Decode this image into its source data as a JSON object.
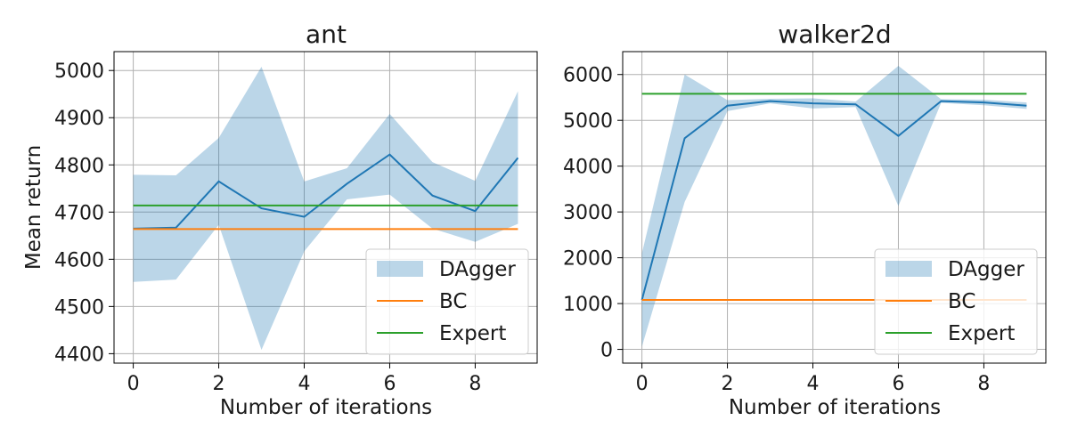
{
  "chart_data": [
    {
      "type": "line",
      "title": "ant",
      "xlabel": "Number of iterations",
      "ylabel": "Mean return",
      "xlim": [
        -0.45,
        9.45
      ],
      "ylim": [
        4380,
        5040
      ],
      "x_ticks": [
        0,
        2,
        4,
        6,
        8
      ],
      "y_ticks": [
        4400,
        4500,
        4600,
        4700,
        4800,
        4900,
        5000
      ],
      "grid": true,
      "legend_position": "lower-right",
      "x": [
        0,
        1,
        2,
        3,
        4,
        5,
        6,
        7,
        8,
        9
      ],
      "series": [
        {
          "name": "DAgger",
          "kind": "band",
          "color": "#1f77b4",
          "values": [
            4665,
            4667,
            4765,
            4708,
            4690,
            4760,
            4822,
            4735,
            4702,
            4815
          ],
          "lower": [
            4552,
            4557,
            4673,
            4408,
            4617,
            4727,
            4737,
            4665,
            4637,
            4675
          ],
          "upper": [
            4779,
            4778,
            4857,
            5008,
            4765,
            4793,
            4908,
            4806,
            4766,
            4956
          ]
        },
        {
          "name": "BC",
          "kind": "line",
          "color": "#ff7f0e",
          "values": [
            4664,
            4664,
            4664,
            4664,
            4664,
            4664,
            4664,
            4664,
            4664,
            4664
          ]
        },
        {
          "name": "Expert",
          "kind": "line",
          "color": "#2ca02c",
          "values": [
            4714,
            4714,
            4714,
            4714,
            4714,
            4714,
            4714,
            4714,
            4714,
            4714
          ]
        }
      ]
    },
    {
      "type": "line",
      "title": "walker2d",
      "xlabel": "Number of iterations",
      "ylabel": "",
      "xlim": [
        -0.45,
        9.45
      ],
      "ylim": [
        -300,
        6500
      ],
      "x_ticks": [
        0,
        2,
        4,
        6,
        8
      ],
      "y_ticks": [
        0,
        1000,
        2000,
        3000,
        4000,
        5000,
        6000
      ],
      "grid": true,
      "legend_position": "lower-right",
      "x": [
        0,
        1,
        2,
        3,
        4,
        5,
        6,
        7,
        8,
        9
      ],
      "series": [
        {
          "name": "DAgger",
          "kind": "band",
          "color": "#1f77b4",
          "values": [
            1080,
            4610,
            5320,
            5420,
            5370,
            5350,
            4660,
            5420,
            5390,
            5320
          ],
          "lower": [
            60,
            3220,
            5200,
            5370,
            5260,
            5290,
            3130,
            5380,
            5330,
            5250
          ],
          "upper": [
            2100,
            6000,
            5440,
            5470,
            5480,
            5410,
            6190,
            5460,
            5450,
            5390
          ]
        },
        {
          "name": "BC",
          "kind": "line",
          "color": "#ff7f0e",
          "values": [
            1080,
            1080,
            1080,
            1080,
            1080,
            1080,
            1080,
            1080,
            1080,
            1080
          ]
        },
        {
          "name": "Expert",
          "kind": "line",
          "color": "#2ca02c",
          "values": [
            5580,
            5580,
            5580,
            5580,
            5580,
            5580,
            5580,
            5580,
            5580,
            5580
          ]
        }
      ]
    }
  ]
}
